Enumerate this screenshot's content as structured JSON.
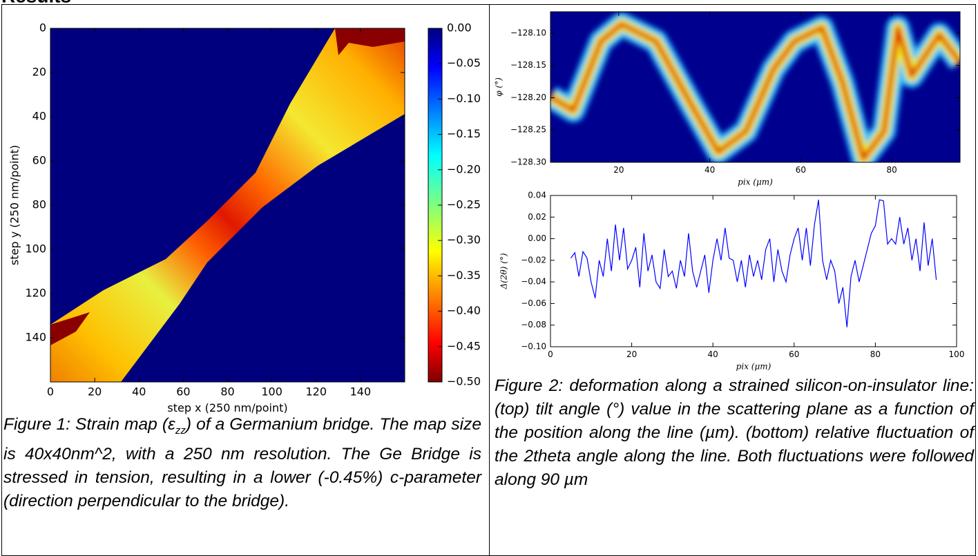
{
  "heading": "Results",
  "figures": [
    {
      "type": "heatmap",
      "xlabel": "step x (250 nm/point)",
      "ylabel": "step y (250 nm/point)",
      "xlim": [
        0,
        160
      ],
      "ylim": [
        160,
        0
      ],
      "xticks": [
        0,
        20,
        40,
        60,
        80,
        100,
        120,
        140
      ],
      "yticks": [
        0,
        20,
        40,
        60,
        80,
        100,
        120,
        140
      ],
      "colorbar": {
        "lim": [
          -0.5,
          0
        ],
        "ticks": [
          {
            "value": 0,
            "label": "0.00"
          },
          {
            "value": -0.05,
            "label": "−0.05"
          },
          {
            "value": -0.1,
            "label": "−0.10"
          },
          {
            "value": -0.15,
            "label": "−0.15"
          },
          {
            "value": -0.2,
            "label": "−0.20"
          },
          {
            "value": -0.25,
            "label": "−0.25"
          },
          {
            "value": -0.3,
            "label": "−0.30"
          },
          {
            "value": -0.35,
            "label": "−0.35"
          },
          {
            "value": -0.4,
            "label": "−0.40"
          },
          {
            "value": -0.45,
            "label": "−0.45"
          },
          {
            "value": -0.5,
            "label": "−0.50"
          }
        ]
      },
      "caption": [
        "Figure 1: Strain map (ε",
        "zz",
        ") of a Germanium bridge. The map size is 40x40nm^2, with a 250 nm resolution. The Ge Bridge is stressed in tension, resulting in a lower (-0.45%) c-parameter (direction perpendicular to the bridge)."
      ]
    },
    {
      "panels": [
        {
          "type": "heatmap",
          "xlabel": "pix (μm)",
          "ylabel": "φ (°)",
          "xlim": [
            5,
            95
          ],
          "ylim": [
            -128.3,
            -128.067
          ],
          "xticks": [
            20,
            40,
            60,
            80
          ],
          "yticks": [
            {
              "value": -128.1,
              "label": "−128.10"
            },
            {
              "value": -128.15,
              "label": "−128.15"
            },
            {
              "value": -128.2,
              "label": "−128.20"
            },
            {
              "value": -128.25,
              "label": "−128.25"
            },
            {
              "value": -128.3,
              "label": "−128.30"
            }
          ]
        },
        {
          "type": "line",
          "xlabel": "pix (μm)",
          "ylabel": "Δ(2θ) (°)",
          "color": "#0000ff",
          "xlim": [
            0,
            100
          ],
          "ylim": [
            -0.1,
            0.04
          ],
          "xticks": [
            0,
            20,
            40,
            60,
            80,
            100
          ],
          "yticks": [
            0.04,
            0.02,
            {
              "value": 0,
              "label": "0.00"
            },
            {
              "value": -0.02,
              "label": "−0.02"
            },
            {
              "value": -0.04,
              "label": "−0.04"
            },
            {
              "value": -0.06,
              "label": "−0.06"
            },
            {
              "value": -0.08,
              "label": "−0.08"
            },
            {
              "value": -0.1,
              "label": "−0.10"
            }
          ],
          "x": [
            5,
            6,
            7,
            8,
            9,
            10,
            11,
            12,
            13,
            14,
            15,
            16,
            17,
            18,
            19,
            20,
            21,
            22,
            23,
            24,
            25,
            26,
            27,
            28,
            29,
            30,
            31,
            32,
            33,
            34,
            35,
            36,
            37,
            38,
            39,
            40,
            41,
            42,
            43,
            44,
            45,
            46,
            47,
            48,
            49,
            50,
            51,
            52,
            53,
            54,
            55,
            56,
            57,
            58,
            59,
            60,
            61,
            62,
            63,
            64,
            65,
            66,
            67,
            68,
            69,
            70,
            71,
            72,
            73,
            74,
            75,
            76,
            77,
            78,
            79,
            80,
            81,
            82,
            83,
            84,
            85,
            86,
            87,
            88,
            89,
            90,
            91,
            92,
            93,
            94,
            95
          ],
          "values": [
            -0.018,
            -0.013,
            -0.035,
            -0.012,
            -0.018,
            -0.04,
            -0.055,
            -0.02,
            -0.035,
            0.0,
            -0.03,
            0.013,
            -0.02,
            0.01,
            -0.028,
            -0.02,
            -0.008,
            -0.045,
            0.005,
            -0.03,
            -0.015,
            -0.04,
            -0.046,
            -0.01,
            -0.035,
            -0.03,
            -0.046,
            -0.02,
            -0.035,
            0.005,
            -0.03,
            -0.045,
            -0.03,
            -0.015,
            -0.05,
            -0.02,
            0.0,
            -0.02,
            0.01,
            -0.018,
            -0.02,
            -0.04,
            -0.02,
            -0.045,
            -0.015,
            -0.035,
            -0.02,
            -0.038,
            -0.01,
            0.0,
            -0.04,
            -0.01,
            -0.03,
            -0.04,
            -0.015,
            0.0,
            0.01,
            -0.02,
            0.01,
            -0.025,
            0.013,
            0.036,
            -0.02,
            -0.038,
            -0.02,
            -0.03,
            -0.06,
            -0.045,
            -0.082,
            -0.035,
            -0.02,
            -0.04,
            -0.025,
            -0.01,
            0.005,
            0.012,
            0.036,
            0.035,
            -0.005,
            0.0,
            -0.005,
            0.02,
            -0.005,
            0.01,
            -0.02,
            0.0,
            -0.03,
            0.015,
            -0.025,
            0.0,
            -0.038
          ]
        }
      ],
      "caption": [
        "Figure 2: deformation along a strained silicon-on-insulator line: (top) tilt angle (°) value in the scattering plane as a function of the position along the line (µm). (bottom) relative fluctuation of the 2theta angle along the line. Both fluctuations were followed along 90 µm"
      ]
    }
  ]
}
